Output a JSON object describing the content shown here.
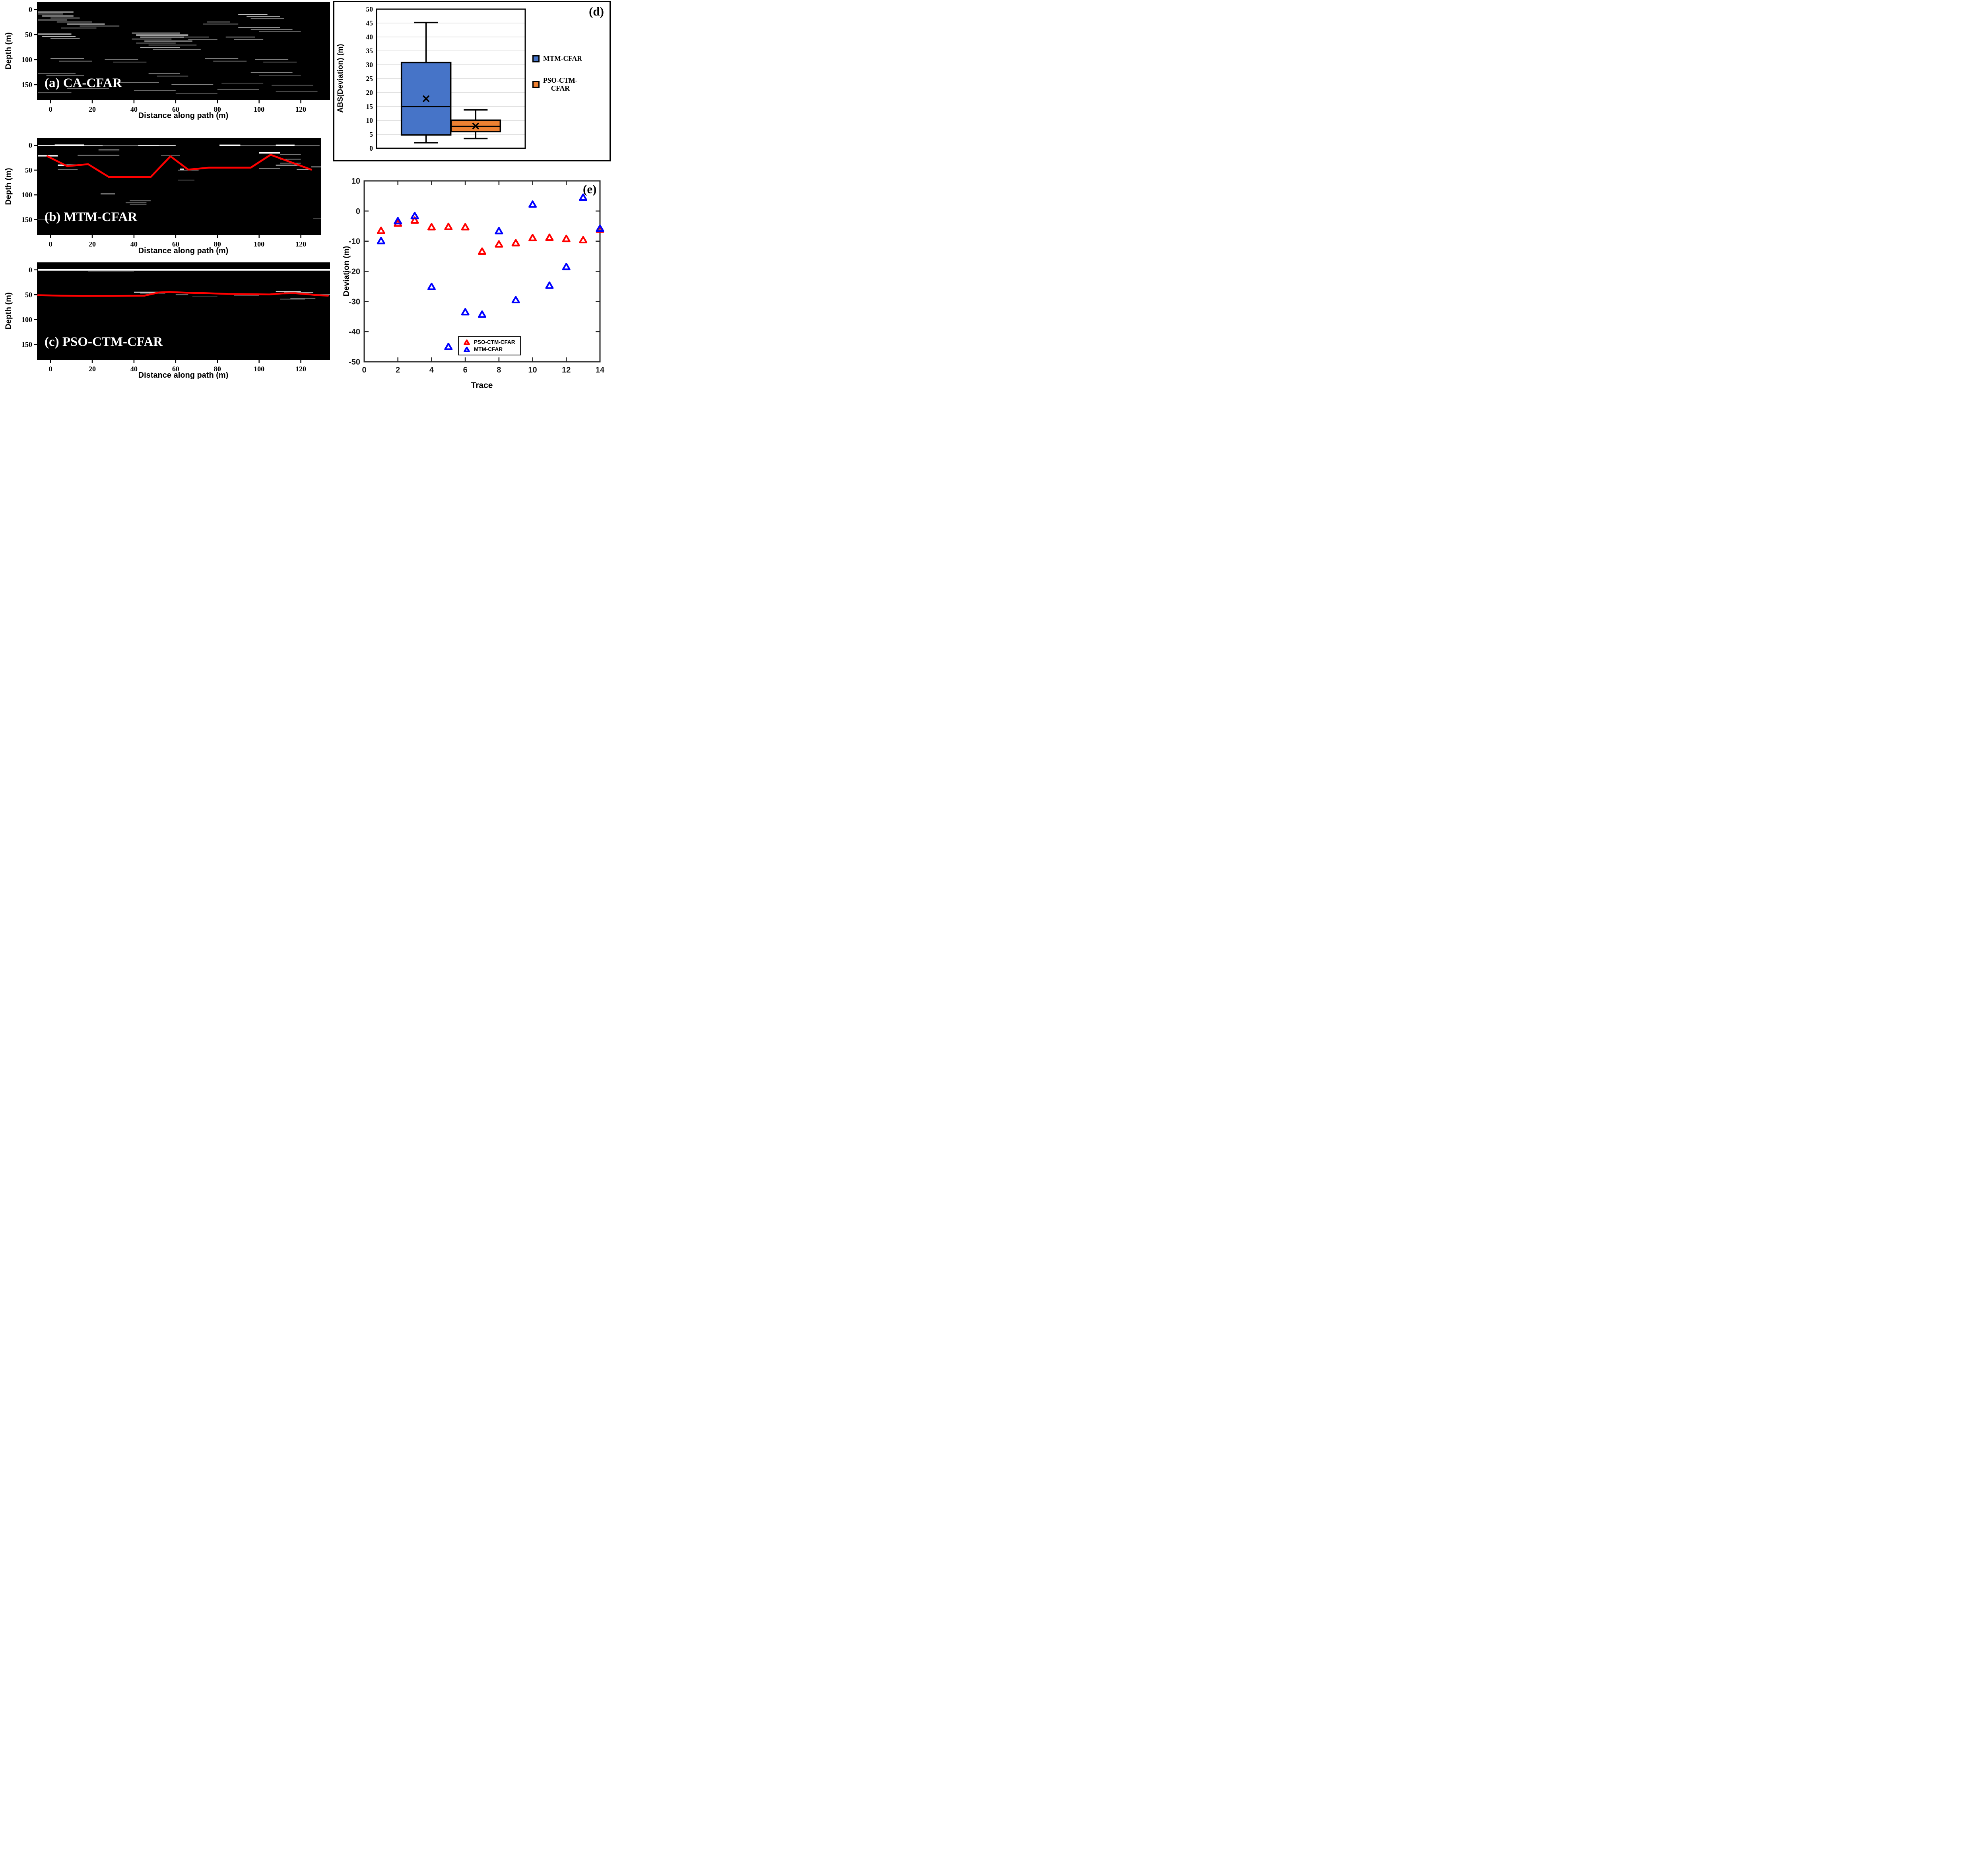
{
  "figure": {
    "background": "#ffffff"
  },
  "colors": {
    "red_line": "#FF0000",
    "scatter_red": "#FF0000",
    "scatter_blue": "#0000FF",
    "box_blue": "#4674C8",
    "box_orange": "#EE8132",
    "gridline": "#D9D9D9",
    "axis_dark": "#262626",
    "gpr_background": "#000000"
  },
  "chart_data": [
    {
      "id": "gpr_a",
      "type": "heatmap",
      "panel_label": "(a) CA-CFAR",
      "xlabel": "Distance along path (m)",
      "ylabel": "Depth (m)",
      "x_ticks": [
        0,
        20,
        40,
        60,
        80,
        100,
        120
      ],
      "y_ticks": [
        0,
        50,
        100,
        150
      ],
      "x_range": [
        -6.5,
        134
      ],
      "depth_range": [
        -15,
        181
      ],
      "segments": [
        [
          -6,
          11,
          5,
          0.95,
          2.5
        ],
        [
          -6,
          6,
          9,
          0.8,
          2
        ],
        [
          -4,
          11,
          13,
          0.9,
          2.5
        ],
        [
          0,
          14,
          17,
          0.7,
          2
        ],
        [
          -6,
          8,
          21,
          0.85,
          2
        ],
        [
          3,
          20,
          25,
          0.7,
          2
        ],
        [
          8,
          26,
          29,
          0.8,
          2.5
        ],
        [
          14,
          33,
          33,
          0.6,
          2
        ],
        [
          5,
          22,
          37,
          0.5,
          2
        ],
        [
          -6,
          10,
          49,
          0.9,
          2.5
        ],
        [
          -4,
          12,
          54,
          0.7,
          2
        ],
        [
          0,
          14,
          58,
          0.5,
          2
        ],
        [
          39,
          62,
          47,
          0.75,
          2.5
        ],
        [
          41,
          66,
          51,
          0.9,
          3
        ],
        [
          43,
          64,
          55,
          0.85,
          2.5
        ],
        [
          39,
          58,
          59,
          0.7,
          2
        ],
        [
          45,
          68,
          63,
          0.8,
          2.5
        ],
        [
          41,
          60,
          67,
          0.6,
          2
        ],
        [
          47,
          70,
          71,
          0.5,
          2
        ],
        [
          43,
          62,
          76,
          0.65,
          2
        ],
        [
          49,
          72,
          80,
          0.45,
          2
        ],
        [
          75,
          86,
          25,
          0.6,
          2
        ],
        [
          73,
          90,
          29,
          0.5,
          2
        ],
        [
          90,
          104,
          10,
          0.75,
          2
        ],
        [
          94,
          110,
          14,
          0.6,
          2
        ],
        [
          96,
          112,
          18,
          0.45,
          2
        ],
        [
          90,
          110,
          36,
          0.6,
          2
        ],
        [
          96,
          116,
          40,
          0.5,
          2
        ],
        [
          100,
          120,
          44,
          0.4,
          2
        ],
        [
          62,
          76,
          55,
          0.55,
          2
        ],
        [
          66,
          80,
          60,
          0.45,
          2
        ],
        [
          84,
          98,
          55,
          0.65,
          2
        ],
        [
          88,
          102,
          60,
          0.5,
          2
        ],
        [
          0,
          16,
          98,
          0.6,
          2
        ],
        [
          4,
          20,
          103,
          0.5,
          2
        ],
        [
          26,
          42,
          100,
          0.45,
          2
        ],
        [
          30,
          46,
          105,
          0.4,
          2
        ],
        [
          74,
          90,
          98,
          0.55,
          2
        ],
        [
          78,
          94,
          103,
          0.45,
          2
        ],
        [
          98,
          114,
          100,
          0.5,
          2
        ],
        [
          102,
          118,
          105,
          0.4,
          2
        ],
        [
          -6,
          12,
          127,
          0.6,
          2
        ],
        [
          -2,
          16,
          132,
          0.45,
          2
        ],
        [
          47,
          62,
          128,
          0.5,
          2
        ],
        [
          51,
          66,
          133,
          0.4,
          2
        ],
        [
          96,
          116,
          126,
          0.55,
          2
        ],
        [
          100,
          120,
          131,
          0.4,
          2
        ],
        [
          32,
          52,
          146,
          0.45,
          2
        ],
        [
          58,
          78,
          150,
          0.5,
          2
        ],
        [
          82,
          102,
          147,
          0.4,
          2
        ],
        [
          106,
          126,
          151,
          0.45,
          2
        ],
        [
          8,
          28,
          158,
          0.45,
          2
        ],
        [
          40,
          60,
          162,
          0.4,
          2
        ],
        [
          80,
          100,
          160,
          0.45,
          2
        ],
        [
          108,
          128,
          164,
          0.35,
          2
        ],
        [
          -6,
          10,
          166,
          0.4,
          2
        ],
        [
          60,
          80,
          168,
          0.35,
          2
        ]
      ],
      "red_line": []
    },
    {
      "id": "gpr_b",
      "type": "heatmap",
      "panel_label": "(b) MTM-CFAR",
      "xlabel": "Distance along path (m)",
      "ylabel": "Depth (m)",
      "x_ticks": [
        0,
        20,
        40,
        60,
        80,
        100,
        120
      ],
      "y_ticks": [
        0,
        50,
        100,
        150
      ],
      "x_range": [
        -6.5,
        129.8
      ],
      "depth_range": [
        -15,
        181
      ],
      "segments": [
        [
          -6,
          2,
          0,
          0.9,
          3
        ],
        [
          2,
          16,
          0,
          1,
          4.5
        ],
        [
          16,
          25,
          0,
          0.75,
          2.5
        ],
        [
          25,
          42,
          0,
          0.5,
          2
        ],
        [
          42,
          52,
          0,
          0.9,
          3
        ],
        [
          52,
          60,
          0,
          0.8,
          3
        ],
        [
          81,
          91,
          0,
          1,
          4
        ],
        [
          91,
          108,
          0,
          0.5,
          2
        ],
        [
          108,
          117,
          0,
          1,
          4
        ],
        [
          117,
          129,
          0,
          0.5,
          2
        ],
        [
          23,
          33,
          9,
          0.6,
          2
        ],
        [
          23,
          33,
          11,
          0.45,
          1.5
        ],
        [
          13,
          33,
          20,
          0.55,
          2
        ],
        [
          -6,
          3.5,
          21,
          0.95,
          3.5
        ],
        [
          53,
          62,
          21,
          0.5,
          2
        ],
        [
          3.5,
          13,
          40,
          0.95,
          3.5
        ],
        [
          3.5,
          13,
          49,
          0.5,
          1.5
        ],
        [
          62,
          64,
          48,
          0.9,
          3
        ],
        [
          61,
          71,
          50,
          0.55,
          2
        ],
        [
          61,
          69,
          70,
          0.4,
          2
        ],
        [
          100,
          110,
          15,
          1,
          4
        ],
        [
          110,
          120,
          18,
          0.5,
          2
        ],
        [
          110,
          120,
          28,
          0.5,
          2
        ],
        [
          110,
          120,
          36,
          0.5,
          2
        ],
        [
          108,
          120,
          40,
          0.7,
          2.5
        ],
        [
          100,
          110,
          47,
          0.5,
          2
        ],
        [
          118,
          125,
          49,
          0.65,
          2
        ],
        [
          24,
          31,
          97,
          0.5,
          2
        ],
        [
          24,
          31,
          100,
          0.4,
          1.5
        ],
        [
          38,
          48,
          112,
          0.5,
          2
        ],
        [
          36,
          46,
          116,
          0.45,
          2
        ],
        [
          38,
          46,
          119,
          0.35,
          2
        ],
        [
          125,
          130,
          42,
          0.5,
          2
        ],
        [
          125,
          130,
          44,
          0.4,
          1.5
        ],
        [
          -6,
          0,
          150,
          0.3,
          1.5
        ],
        [
          126,
          130,
          148,
          0.3,
          1.5
        ]
      ],
      "red_line": [
        [
          -1.5,
          22
        ],
        [
          8,
          42
        ],
        [
          18,
          38
        ],
        [
          28,
          64
        ],
        [
          48,
          64
        ],
        [
          57.5,
          22
        ],
        [
          66,
          49
        ],
        [
          76,
          45
        ],
        [
          96,
          45
        ],
        [
          105.5,
          19
        ],
        [
          125,
          49
        ]
      ]
    },
    {
      "id": "gpr_c",
      "type": "heatmap",
      "panel_label": "(c) PSO-CTM-CFAR",
      "xlabel": "Distance along path (m)",
      "ylabel": "Depth (m)",
      "x_ticks": [
        0,
        20,
        40,
        60,
        80,
        100,
        120
      ],
      "y_ticks": [
        0,
        50,
        100,
        150
      ],
      "x_range": [
        -6.5,
        134
      ],
      "depth_range": [
        -15,
        181
      ],
      "segments": [
        [
          -6,
          134,
          0,
          1,
          4
        ],
        [
          40,
          57,
          45,
          0.85,
          2.5
        ],
        [
          43,
          55,
          47,
          0.5,
          2
        ],
        [
          60,
          66,
          50,
          0.5,
          2
        ],
        [
          108,
          120,
          44,
          0.9,
          2.5
        ],
        [
          112,
          126,
          46,
          0.8,
          2
        ],
        [
          115,
          127,
          57,
          0.6,
          2
        ],
        [
          110,
          122,
          59,
          0.4,
          2
        ],
        [
          125,
          134,
          50,
          0.6,
          2
        ],
        [
          88,
          100,
          52,
          0.4,
          1.5
        ],
        [
          68,
          80,
          53,
          0.35,
          1.5
        ],
        [
          18,
          40,
          3,
          0.3,
          1.5
        ]
      ],
      "red_line": [
        [
          -6,
          51
        ],
        [
          5,
          52
        ],
        [
          15,
          52.5
        ],
        [
          30,
          52.5
        ],
        [
          45,
          52
        ],
        [
          52,
          45.5
        ],
        [
          57,
          44.5
        ],
        [
          65,
          46
        ],
        [
          75,
          47
        ],
        [
          85,
          48.5
        ],
        [
          95,
          49
        ],
        [
          105,
          49.5
        ],
        [
          111,
          47.5
        ],
        [
          117,
          47
        ],
        [
          123,
          49
        ],
        [
          128,
          51
        ],
        [
          133,
          52
        ]
      ]
    },
    {
      "id": "boxplot_d",
      "type": "box",
      "panel_label": "(d)",
      "ylabel": "ABS(Deviation) (m)",
      "ylim": [
        0,
        50
      ],
      "y_ticks": [
        0,
        5,
        10,
        15,
        20,
        25,
        30,
        35,
        40,
        45,
        50
      ],
      "grid": "horizontal",
      "groups": [
        {
          "name": "MTM-CFAR",
          "color": "#4674C8",
          "whisker_low": 2.0,
          "q1": 4.8,
          "median": 15.0,
          "q3": 30.8,
          "whisker_high": 45.2,
          "mean": 17.8
        },
        {
          "name": "PSO-CTM-CFAR",
          "name_line1": "PSO-CTM-",
          "name_line2": "CFAR",
          "color": "#EE8132",
          "whisker_low": 3.5,
          "q1": 6.0,
          "median": 7.9,
          "q3": 10.1,
          "whisker_high": 13.8,
          "mean": 8.0
        }
      ],
      "legend_position": "right"
    },
    {
      "id": "scatter_e",
      "type": "scatter",
      "panel_label": "(e)",
      "xlabel": "Trace",
      "ylabel": "Deviation (m)",
      "xlim": [
        0,
        14
      ],
      "ylim": [
        -50,
        10
      ],
      "x_ticks": [
        0,
        2,
        4,
        6,
        8,
        10,
        12,
        14
      ],
      "y_ticks": [
        10,
        0,
        -10,
        -20,
        -30,
        -40,
        -50
      ],
      "marker": "open-triangle-up",
      "series": [
        {
          "name": "PSO-CTM-CFAR",
          "color": "#FF0000",
          "x": [
            1,
            2,
            3,
            4,
            5,
            6,
            7,
            8,
            9,
            10,
            11,
            12,
            13,
            14
          ],
          "y": [
            -6.5,
            -4.1,
            -3.1,
            -5.3,
            -5.2,
            -5.3,
            -13.4,
            -11.0,
            -10.6,
            -8.9,
            -8.8,
            -9.2,
            -9.6,
            -6.1
          ]
        },
        {
          "name": "MTM-CFAR",
          "color": "#0000FF",
          "x": [
            1,
            2,
            3,
            4,
            5,
            6,
            7,
            8,
            9,
            10,
            11,
            12,
            13,
            14
          ],
          "y": [
            -9.9,
            -3.3,
            -1.6,
            -25.1,
            -45.0,
            -33.5,
            -34.3,
            -6.6,
            -29.5,
            2.2,
            -24.7,
            -18.5,
            4.5,
            -5.8
          ]
        }
      ],
      "legend_position": "bottom-right"
    }
  ]
}
